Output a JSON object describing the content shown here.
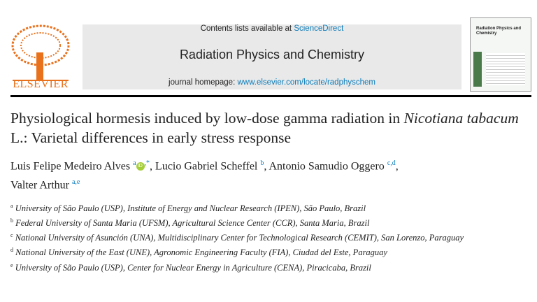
{
  "header": {
    "publisher": "ELSEVIER",
    "contents_prefix": "Contents lists available at",
    "contents_link": "ScienceDirect",
    "journal": "Radiation Physics and Chemistry",
    "homepage_prefix": "journal homepage:",
    "homepage_link": "www.elsevier.com/locate/radphyschem",
    "cover_title": "Radiation Physics and Chemistry"
  },
  "title": {
    "part1": "Physiological hormesis induced by low-dose gamma radiation in ",
    "italic": "Nicotiana tabacum",
    "part2": " L.: Varietal differences in early stress response"
  },
  "author_separator": ", ",
  "authors": [
    {
      "name": "Luis Felipe Medeiro Alves",
      "affil": "a",
      "extra": ",*"
    },
    {
      "name": "Lucio Gabriel Scheffel",
      "affil": "b"
    },
    {
      "name": "Antonio Samudio Oggero",
      "affil": "c,d"
    },
    {
      "name": "Valter Arthur",
      "affil": "a,e"
    }
  ],
  "affiliations": [
    {
      "mark": "a",
      "text": "University of São Paulo (USP), Institute of Energy and Nuclear Research (IPEN), São Paulo, Brazil"
    },
    {
      "mark": "b",
      "text": "Federal University of Santa Maria (UFSM), Agricultural Science Center (CCR), Santa Maria, Brazil"
    },
    {
      "mark": "c",
      "text": "National University of Asunción (UNA), Multidisciplinary Center for Technological Research (CEMIT), San Lorenzo, Paraguay"
    },
    {
      "mark": "d",
      "text": "National University of the East (UNE), Agronomic Engineering Faculty (FIA), Ciudad del Este, Paraguay"
    },
    {
      "mark": "e",
      "text": "University of São Paulo (USP), Center for Nuclear Energy in Agriculture (CENA), Piracicaba, Brazil"
    }
  ]
}
